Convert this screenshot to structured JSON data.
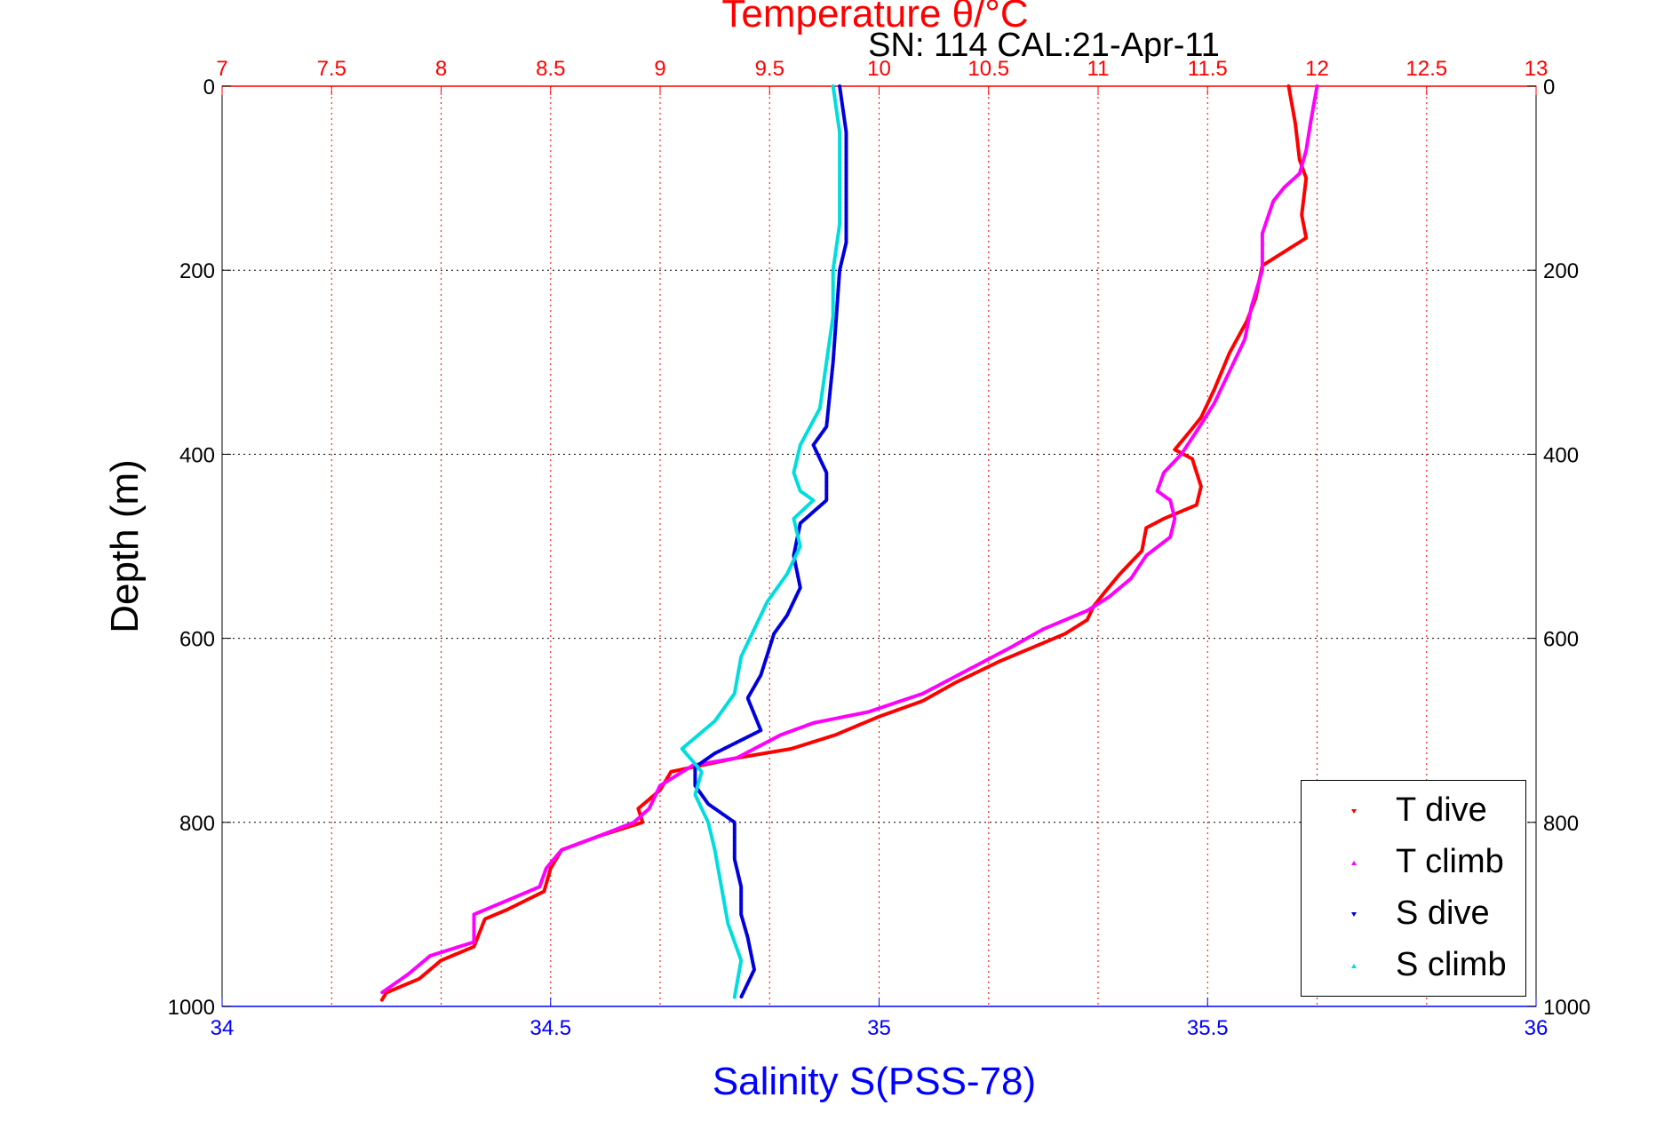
{
  "chart_data": {
    "type": "scatter",
    "title": "Temperature θ/°C",
    "subtitle": "SN: 114  CAL:21-Apr-11",
    "xlabel": "Salinity S(PSS-78)",
    "ylabel": "Depth (m)",
    "colors": {
      "temperature_axis": "#ff0000",
      "salinity_axis": "#0000ff",
      "t_dive": "#ff0000",
      "t_climb": "#ff00ff",
      "s_dive": "#0000dd",
      "s_climb": "#00dddd"
    },
    "axes": {
      "temperature": {
        "range": [
          7,
          13
        ],
        "ticks": [
          "7",
          "7.5",
          "8",
          "8.5",
          "9",
          "9.5",
          "10",
          "10.5",
          "11",
          "11.5",
          "12",
          "12.5",
          "13"
        ]
      },
      "salinity": {
        "range": [
          34,
          36
        ],
        "ticks": [
          "34",
          "34.5",
          "35",
          "35.5",
          "36"
        ]
      },
      "depth": {
        "range": [
          0,
          1000
        ],
        "ticks": [
          "0",
          "200",
          "400",
          "600",
          "800",
          "1000"
        ],
        "reversed": true
      }
    },
    "grid": true,
    "legend_position": "bottom-right",
    "series": [
      {
        "name": "T dive",
        "axis": "temperature",
        "marker": "down",
        "points": [
          [
            11.87,
            0
          ],
          [
            11.9,
            40
          ],
          [
            11.92,
            80
          ],
          [
            11.95,
            100
          ],
          [
            11.93,
            140
          ],
          [
            11.95,
            165
          ],
          [
            11.85,
            180
          ],
          [
            11.75,
            195
          ],
          [
            11.72,
            230
          ],
          [
            11.68,
            255
          ],
          [
            11.6,
            290
          ],
          [
            11.53,
            330
          ],
          [
            11.47,
            360
          ],
          [
            11.42,
            375
          ],
          [
            11.35,
            395
          ],
          [
            11.43,
            405
          ],
          [
            11.47,
            435
          ],
          [
            11.45,
            455
          ],
          [
            11.3,
            470
          ],
          [
            11.22,
            480
          ],
          [
            11.2,
            505
          ],
          [
            11.1,
            530
          ],
          [
            11.03,
            550
          ],
          [
            10.98,
            565
          ],
          [
            10.95,
            580
          ],
          [
            10.85,
            595
          ],
          [
            10.75,
            605
          ],
          [
            10.55,
            625
          ],
          [
            10.35,
            648
          ],
          [
            10.2,
            668
          ],
          [
            10.0,
            685
          ],
          [
            9.8,
            705
          ],
          [
            9.6,
            720
          ],
          [
            9.35,
            730
          ],
          [
            9.05,
            745
          ],
          [
            9.0,
            765
          ],
          [
            8.9,
            785
          ],
          [
            8.92,
            800
          ],
          [
            8.72,
            815
          ],
          [
            8.55,
            830
          ],
          [
            8.5,
            850
          ],
          [
            8.47,
            875
          ],
          [
            8.3,
            895
          ],
          [
            8.2,
            905
          ],
          [
            8.15,
            935
          ],
          [
            8.0,
            950
          ],
          [
            7.9,
            970
          ],
          [
            7.75,
            985
          ],
          [
            7.73,
            993
          ]
        ]
      },
      {
        "name": "T climb",
        "axis": "temperature",
        "marker": "up",
        "points": [
          [
            12.0,
            0
          ],
          [
            11.97,
            40
          ],
          [
            11.95,
            70
          ],
          [
            11.92,
            95
          ],
          [
            11.85,
            110
          ],
          [
            11.8,
            125
          ],
          [
            11.75,
            160
          ],
          [
            11.75,
            200
          ],
          [
            11.7,
            240
          ],
          [
            11.67,
            275
          ],
          [
            11.6,
            310
          ],
          [
            11.53,
            345
          ],
          [
            11.45,
            375
          ],
          [
            11.38,
            400
          ],
          [
            11.3,
            420
          ],
          [
            11.27,
            440
          ],
          [
            11.33,
            450
          ],
          [
            11.35,
            470
          ],
          [
            11.33,
            490
          ],
          [
            11.22,
            510
          ],
          [
            11.15,
            535
          ],
          [
            11.05,
            555
          ],
          [
            10.95,
            570
          ],
          [
            10.75,
            590
          ],
          [
            10.6,
            610
          ],
          [
            10.4,
            635
          ],
          [
            10.2,
            660
          ],
          [
            9.95,
            680
          ],
          [
            9.7,
            692
          ],
          [
            9.55,
            705
          ],
          [
            9.35,
            730
          ],
          [
            9.15,
            738
          ],
          [
            9.0,
            760
          ],
          [
            8.95,
            785
          ],
          [
            8.88,
            800
          ],
          [
            8.72,
            815
          ],
          [
            8.55,
            830
          ],
          [
            8.48,
            850
          ],
          [
            8.45,
            870
          ],
          [
            8.3,
            885
          ],
          [
            8.15,
            900
          ],
          [
            8.15,
            930
          ],
          [
            7.95,
            945
          ],
          [
            7.85,
            965
          ],
          [
            7.73,
            985
          ]
        ]
      },
      {
        "name": "S dive",
        "axis": "salinity",
        "marker": "down",
        "points": [
          [
            34.94,
            0
          ],
          [
            34.95,
            50
          ],
          [
            34.95,
            110
          ],
          [
            34.95,
            170
          ],
          [
            34.94,
            200
          ],
          [
            34.93,
            300
          ],
          [
            34.92,
            370
          ],
          [
            34.9,
            390
          ],
          [
            34.92,
            420
          ],
          [
            34.92,
            450
          ],
          [
            34.88,
            475
          ],
          [
            34.87,
            510
          ],
          [
            34.88,
            545
          ],
          [
            34.86,
            575
          ],
          [
            34.84,
            595
          ],
          [
            34.82,
            640
          ],
          [
            34.8,
            665
          ],
          [
            34.82,
            700
          ],
          [
            34.75,
            725
          ],
          [
            34.72,
            740
          ],
          [
            34.72,
            760
          ],
          [
            34.74,
            780
          ],
          [
            34.78,
            800
          ],
          [
            34.78,
            840
          ],
          [
            34.79,
            870
          ],
          [
            34.79,
            900
          ],
          [
            34.8,
            925
          ],
          [
            34.81,
            960
          ],
          [
            34.79,
            990
          ]
        ]
      },
      {
        "name": "S climb",
        "axis": "salinity",
        "marker": "up",
        "points": [
          [
            34.93,
            0
          ],
          [
            34.94,
            50
          ],
          [
            34.94,
            100
          ],
          [
            34.94,
            150
          ],
          [
            34.93,
            200
          ],
          [
            34.93,
            250
          ],
          [
            34.92,
            300
          ],
          [
            34.91,
            350
          ],
          [
            34.88,
            390
          ],
          [
            34.87,
            420
          ],
          [
            34.88,
            440
          ],
          [
            34.9,
            450
          ],
          [
            34.87,
            470
          ],
          [
            34.88,
            500
          ],
          [
            34.86,
            530
          ],
          [
            34.83,
            560
          ],
          [
            34.81,
            590
          ],
          [
            34.79,
            620
          ],
          [
            34.78,
            660
          ],
          [
            34.75,
            690
          ],
          [
            34.7,
            720
          ],
          [
            34.73,
            745
          ],
          [
            34.72,
            770
          ],
          [
            34.74,
            800
          ],
          [
            34.75,
            830
          ],
          [
            34.76,
            870
          ],
          [
            34.77,
            910
          ],
          [
            34.79,
            950
          ],
          [
            34.78,
            990
          ]
        ]
      }
    ]
  }
}
